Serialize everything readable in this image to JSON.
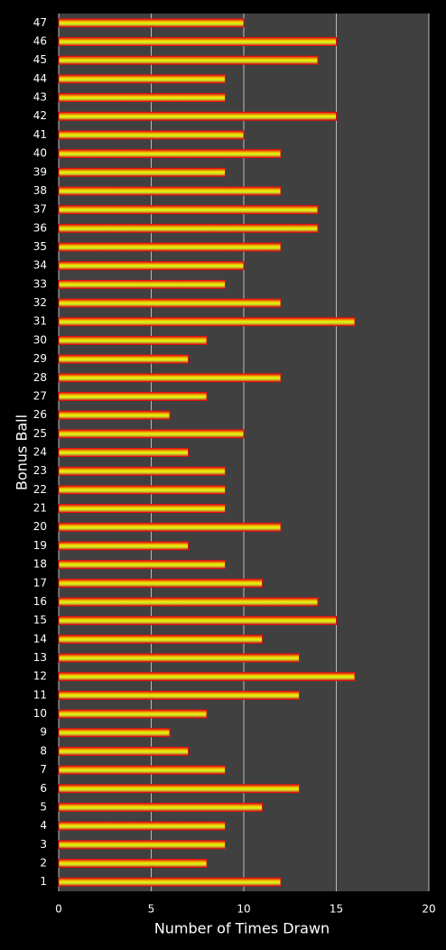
{
  "chart_data": {
    "type": "barh",
    "x_label": "Number of Times Drawn",
    "y_label": "Bonus Ball",
    "categories": [
      "1",
      "2",
      "3",
      "4",
      "5",
      "6",
      "7",
      "8",
      "9",
      "10",
      "11",
      "12",
      "13",
      "14",
      "15",
      "16",
      "17",
      "18",
      "19",
      "20",
      "21",
      "22",
      "23",
      "24",
      "25",
      "26",
      "27",
      "28",
      "29",
      "30",
      "31",
      "32",
      "33",
      "34",
      "35",
      "36",
      "37",
      "38",
      "39",
      "40",
      "41",
      "42",
      "43",
      "44",
      "45",
      "46",
      "47"
    ],
    "values": [
      12,
      8,
      9,
      9,
      11,
      13,
      9,
      7,
      6,
      8,
      13,
      16,
      13,
      11,
      15,
      14,
      11,
      9,
      7,
      12,
      9,
      9,
      9,
      7,
      10,
      6,
      8,
      12,
      7,
      8,
      16,
      12,
      9,
      10,
      12,
      14,
      14,
      12,
      9,
      12,
      10,
      15,
      9,
      9,
      14,
      15,
      10
    ],
    "color": "#c8dc28",
    "edge_color": "#e01010",
    "xlim": [
      0,
      20
    ],
    "xticks": [
      0,
      5,
      10,
      15,
      20
    ],
    "grid": true
  }
}
